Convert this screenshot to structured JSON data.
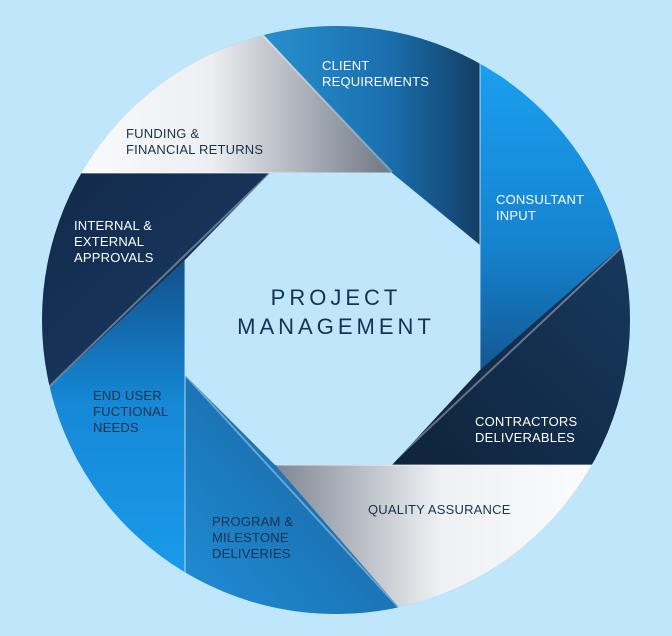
{
  "center": {
    "line1": "PROJECT",
    "line2": "MANAGEMENT"
  },
  "segments": [
    {
      "label": "CLIENT\nREQUIREMENTS"
    },
    {
      "label": "CONSULTANT\nINPUT"
    },
    {
      "label": "CONTRACTORS\nDELIVERABLES"
    },
    {
      "label": "QUALITY ASSURANCE"
    },
    {
      "label": "PROGRAM &\nMILESTONE\nDELIVERIES"
    },
    {
      "label": "END USER\nFUCTIONAL\nNEEDS"
    },
    {
      "label": "INTERNAL &\nEXTERNAL\nAPPROVALS"
    },
    {
      "label": "FUNDING &\nFINANCIAL RETURNS"
    }
  ],
  "colors": {
    "background": "#bfe6fb",
    "inner": "#bfe6fb",
    "navy": "#132d4c",
    "blue": "#1e7cc4",
    "bright_blue": "#1597e6",
    "white": "#ffffff",
    "dark_text": "#17324f"
  }
}
